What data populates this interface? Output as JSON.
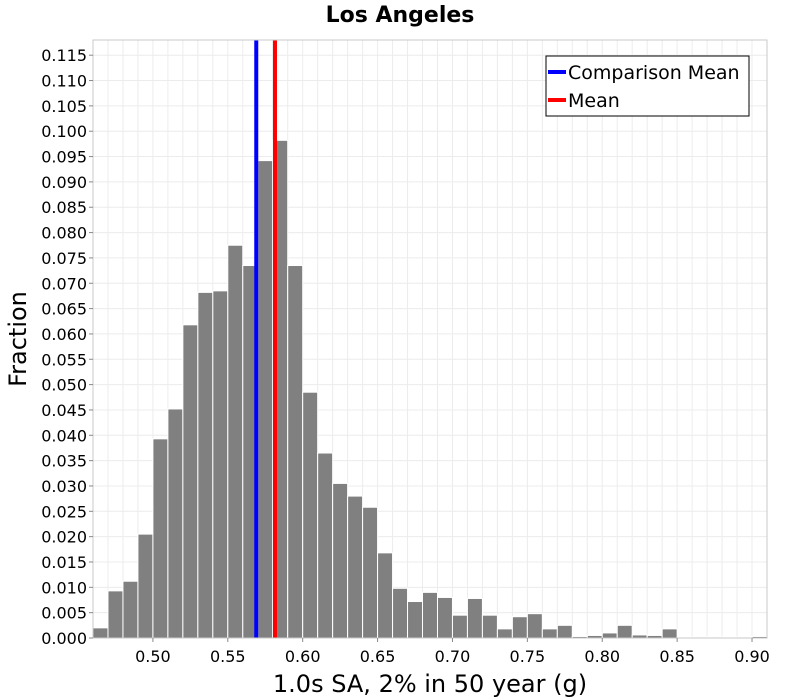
{
  "chart_data": {
    "type": "bar",
    "title": "Los Angeles",
    "xlabel": "1.0s SA, 2% in 50 year (g)",
    "ylabel": "Fraction",
    "xlim": [
      0.46,
      0.91
    ],
    "ylim": [
      0.0,
      0.118
    ],
    "x_ticks": [
      "0.50",
      "0.55",
      "0.60",
      "0.65",
      "0.70",
      "0.75",
      "0.80",
      "0.85",
      "0.90"
    ],
    "y_ticks": [
      "0.000",
      "0.005",
      "0.010",
      "0.015",
      "0.020",
      "0.025",
      "0.030",
      "0.035",
      "0.040",
      "0.045",
      "0.050",
      "0.055",
      "0.060",
      "0.065",
      "0.070",
      "0.075",
      "0.080",
      "0.085",
      "0.090",
      "0.095",
      "0.100",
      "0.105",
      "0.110",
      "0.115"
    ],
    "grid": true,
    "bin_width": 0.01,
    "bar_color": "#808080",
    "bins_x": [
      0.465,
      0.475,
      0.485,
      0.495,
      0.505,
      0.515,
      0.525,
      0.535,
      0.545,
      0.555,
      0.565,
      0.575,
      0.585,
      0.595,
      0.605,
      0.615,
      0.625,
      0.635,
      0.645,
      0.655,
      0.665,
      0.675,
      0.685,
      0.695,
      0.705,
      0.715,
      0.725,
      0.735,
      0.745,
      0.755,
      0.765,
      0.775,
      0.785,
      0.795,
      0.805,
      0.815,
      0.825,
      0.835,
      0.845,
      0.855,
      0.865,
      0.875,
      0.885,
      0.895,
      0.905
    ],
    "values": [
      0.002,
      0.0093,
      0.0112,
      0.0205,
      0.0393,
      0.0452,
      0.0618,
      0.0682,
      0.0685,
      0.0775,
      0.0735,
      0.0942,
      0.0982,
      0.0735,
      0.0485,
      0.0365,
      0.0305,
      0.028,
      0.0258,
      0.0168,
      0.0098,
      0.0072,
      0.009,
      0.008,
      0.0045,
      0.0078,
      0.0045,
      0.0018,
      0.0042,
      0.0048,
      0.0018,
      0.0025,
      0.0003,
      0.0005,
      0.001,
      0.0025,
      0.0006,
      0.0005,
      0.0018,
      0.0,
      0.0002,
      0.0002,
      0.0,
      0.0002,
      0.0003
    ],
    "vlines": [
      {
        "name": "Comparison Mean",
        "x": 0.569,
        "color": "#0000ff"
      },
      {
        "name": "Mean",
        "x": 0.5815,
        "color": "#ff0000"
      }
    ],
    "legend": "top-right"
  }
}
